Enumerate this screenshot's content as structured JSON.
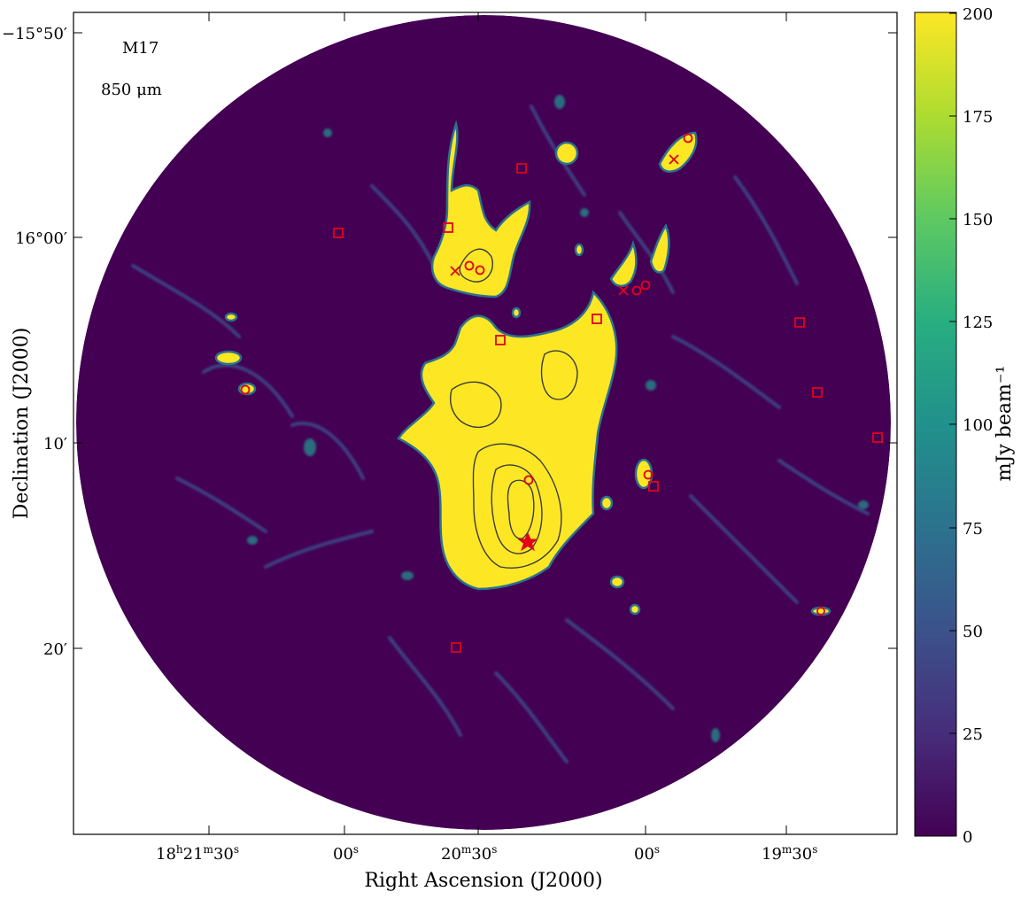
{
  "panel": {
    "label_object": "M17",
    "label_band": "850 μm"
  },
  "axes": {
    "xlabel": "Right Ascension (J2000)",
    "ylabel": "Declination (J2000)",
    "x_ticks": [
      "18h21m30s",
      "00s",
      "20m30s",
      "00s",
      "19m30s"
    ],
    "y_ticks": [
      "−15°50′",
      "16°00′",
      "10′",
      "20′"
    ]
  },
  "colorbar": {
    "label": "mJy beam⁻¹",
    "ticks": [
      "0",
      "25",
      "50",
      "75",
      "100",
      "125",
      "150",
      "175",
      "200"
    ],
    "vmin": 0,
    "vmax": 200,
    "colormap": "viridis",
    "colors": [
      "#440154",
      "#3b528b",
      "#21918c",
      "#5ec962",
      "#fde725"
    ]
  },
  "markers": {
    "color": "#e3001b",
    "types": [
      "square",
      "circle",
      "cross",
      "star"
    ]
  }
}
